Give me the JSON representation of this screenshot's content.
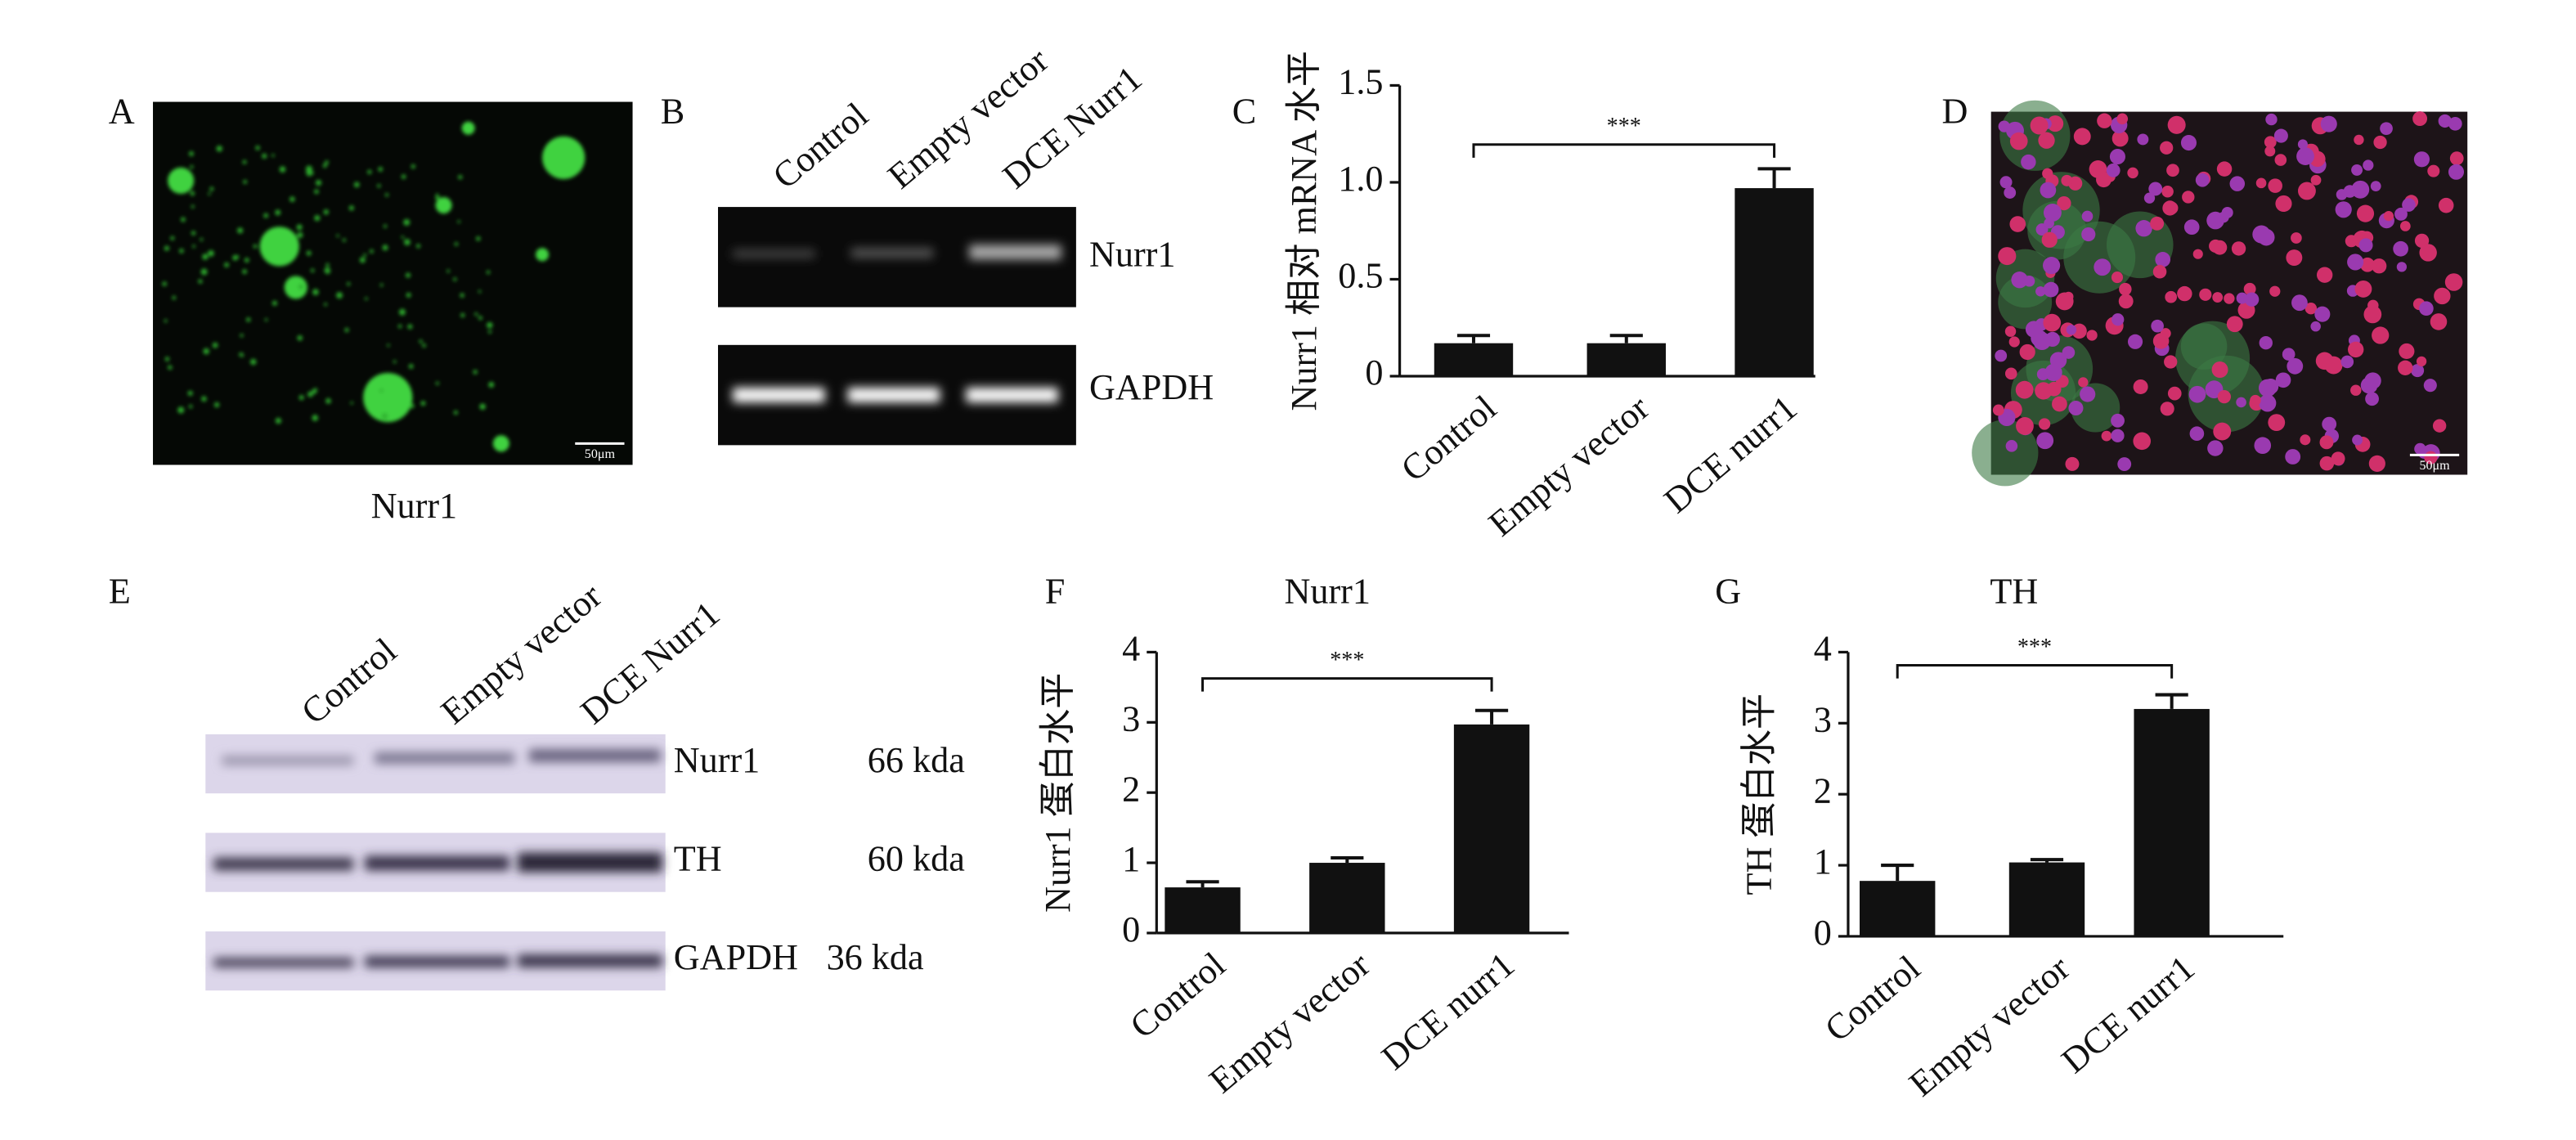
{
  "panel_labels": [
    "A",
    "B",
    "C",
    "D",
    "E",
    "F",
    "G"
  ],
  "panel_a": {
    "caption": "Nurr1",
    "scale_bar": "50μm"
  },
  "panel_b": {
    "lanes": [
      "Control",
      "Empty vector",
      "DCE Nurr1"
    ],
    "bands": [
      "Nurr1",
      "GAPDH"
    ]
  },
  "panel_d": {
    "scale_bar": "50μm"
  },
  "panel_e": {
    "lanes": [
      "Control",
      "Empty vector",
      "DCE Nurr1"
    ],
    "bands": [
      {
        "name": "Nurr1",
        "size": "66 kda"
      },
      {
        "name": "TH",
        "size": "60 kda"
      },
      {
        "name": "GAPDH",
        "size": "36 kda"
      }
    ]
  },
  "chart_data": [
    {
      "type": "bar",
      "y_label": "Nurr1 相对 mRNA 水平",
      "categories": [
        "Control",
        "Empty vector",
        "DCE nurr1"
      ],
      "values": [
        0.17,
        0.17,
        0.97
      ],
      "errors": [
        0.04,
        0.04,
        0.1
      ],
      "color": "#111111",
      "ylim": [
        0,
        1.5
      ],
      "yticks": [
        0,
        0.5,
        {
          "value": 1,
          "label": "1.0"
        },
        1.5
      ],
      "annotation": "***"
    },
    {
      "type": "bar",
      "title": "Nurr1",
      "y_label": "Nurr1 蛋白水平",
      "categories": [
        "Control",
        "Empty vector",
        "DCE nurr1"
      ],
      "values": [
        0.65,
        1.0,
        2.97
      ],
      "errors": [
        0.08,
        0.07,
        0.2
      ],
      "color": "#111111",
      "ylim": [
        0,
        4
      ],
      "yticks": [
        0,
        1,
        2,
        3,
        4
      ],
      "annotation": "***"
    },
    {
      "type": "bar",
      "title": "TH",
      "y_label": "TH 蛋白水平",
      "categories": [
        "Control",
        "Empty vector",
        "DCE nurr1"
      ],
      "values": [
        0.78,
        1.04,
        3.2
      ],
      "errors": [
        0.22,
        0.04,
        0.2
      ],
      "color": "#111111",
      "ylim": [
        0,
        4
      ],
      "yticks": [
        0,
        1,
        2,
        3,
        4
      ],
      "annotation": "***"
    }
  ]
}
